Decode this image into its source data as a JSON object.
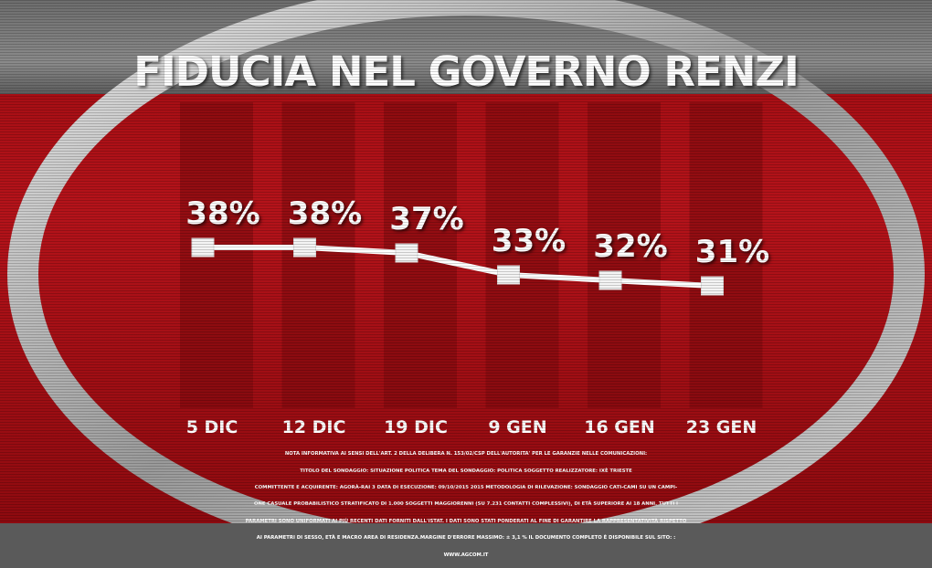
{
  "title": "FIDUCIA NEL GOVERNO RENZI",
  "note_lines": [
    "NOTA INFORMATIVA AI SENSI DELL'ART. 2 DELLA DELIBERA N. 153/02/CSP DELL'AUTORITA' PER LE GARANZIE NELLE COMUNICAZIONI:",
    "TITOLO DEL SONDAGGIO: SITUAZIONE POLITICA   TEMA DEL SONDAGGIO: POLITICA SOGGETTO REALIZZATORE: IXÈ TRIESTE",
    "COMMITTENTE E ACQUIRENTE: AGORÀ-RAI 3 DATA DI ESECUZIONE: 09/10/2015  2015 METODOLOGIA DI RILEVAZIONE: SONDAGGIO CATI-CAMI SU UN CAMPI-",
    "ONE CASUALE PROBABILISTICO STRATIFICATO DI 1.000 SOGGETTI MAGGIORENNI (SU 7.231 CONTATTI COMPLESSIVI), DI ETÀ SUPERIORE AI 18 ANNI. TUTTI I",
    "PARAMETRI SONO UNIFORMATI AI PIÙ RECENTI DATI FORNITI DALL'ISTAT. I DATI SONO STATI PONDERATI AL FINE DI GARANTIRE LA RAPPRESENTATIVITÀ RISPETTO",
    "AI PARAMETRI DI SESSO, ETÀ E MACRO AREA DI RESIDENZA.MARGINE D'ERRORE MASSIMO: ± 3,1 % IL DOCUMENTO COMPLETO È DISPONIBILE SUL SITO: :",
    "WWW.AGCOM.IT"
  ],
  "colors": {
    "line": "#ffffff",
    "marker": "#f4f4f4",
    "column": "#7a0a0d",
    "text": "#ffffff",
    "ring": "#bdbdbd"
  },
  "chart_data": {
    "type": "line",
    "categories": [
      "5 DIC",
      "12 DIC",
      "19 DIC",
      "9 GEN",
      "16 GEN",
      "23 GEN"
    ],
    "values": [
      38,
      38,
      37,
      33,
      32,
      31
    ],
    "value_labels": [
      "38%",
      "38%",
      "37%",
      "33%",
      "32%",
      "31%"
    ],
    "title": "FIDUCIA NEL GOVERNO RENZI",
    "xlabel": "",
    "ylabel": "",
    "grid": false,
    "legend": "none"
  }
}
